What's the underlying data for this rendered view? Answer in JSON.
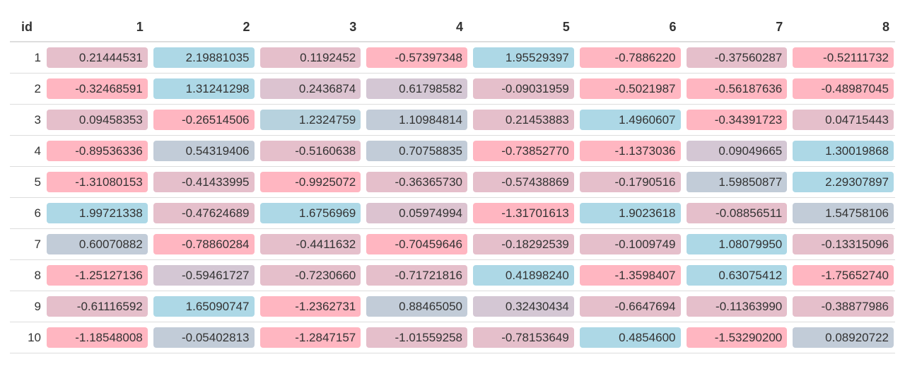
{
  "table": {
    "headers": [
      "id",
      "1",
      "2",
      "3",
      "4",
      "5",
      "6",
      "7",
      "8"
    ],
    "colors": {
      "pink": "#ffb6c1",
      "mauve": "#e5bfcb",
      "lavender": "#d4c7d4",
      "slate": "#c2ccd8",
      "blue": "#add8e6"
    },
    "rows": [
      {
        "id": "1",
        "cells": [
          {
            "v": "0.21444531",
            "c": "#e5bfcb"
          },
          {
            "v": "2.19881035",
            "c": "#add8e6"
          },
          {
            "v": "0.1192452",
            "c": "#e5bfcb"
          },
          {
            "v": "-0.57397348",
            "c": "#ffb6c1"
          },
          {
            "v": "1.95529397",
            "c": "#add8e6"
          },
          {
            "v": "-0.7886220",
            "c": "#ffb6c1"
          },
          {
            "v": "-0.37560287",
            "c": "#e5bfcb"
          },
          {
            "v": "-0.52111732",
            "c": "#ffb6c1"
          }
        ]
      },
      {
        "id": "2",
        "cells": [
          {
            "v": "-0.32468591",
            "c": "#ffb6c1"
          },
          {
            "v": "1.31241298",
            "c": "#add8e6"
          },
          {
            "v": "0.2436874",
            "c": "#dcc3d0"
          },
          {
            "v": "0.61798582",
            "c": "#d4c7d4"
          },
          {
            "v": "-0.09031959",
            "c": "#e5bfcb"
          },
          {
            "v": "-0.5021987",
            "c": "#ffb6c1"
          },
          {
            "v": "-0.56187636",
            "c": "#ffb6c1"
          },
          {
            "v": "-0.48987045",
            "c": "#ffb6c1"
          }
        ]
      },
      {
        "id": "3",
        "cells": [
          {
            "v": "0.09458353",
            "c": "#e5bfcb"
          },
          {
            "v": "-0.26514506",
            "c": "#ffb6c1"
          },
          {
            "v": "1.2324759",
            "c": "#b7d2de"
          },
          {
            "v": "1.10984814",
            "c": "#c2ccd8"
          },
          {
            "v": "0.21453883",
            "c": "#e5bfcb"
          },
          {
            "v": "1.4960607",
            "c": "#add8e6"
          },
          {
            "v": "-0.34391723",
            "c": "#ffb6c1"
          },
          {
            "v": "0.04715443",
            "c": "#e5bfcb"
          }
        ]
      },
      {
        "id": "4",
        "cells": [
          {
            "v": "-0.89536336",
            "c": "#ffb6c1"
          },
          {
            "v": "0.54319406",
            "c": "#c2ccd8"
          },
          {
            "v": "-0.5160638",
            "c": "#e5bfcb"
          },
          {
            "v": "0.70758835",
            "c": "#c2ccd8"
          },
          {
            "v": "-0.73852770",
            "c": "#ffb6c1"
          },
          {
            "v": "-1.1373036",
            "c": "#ffb6c1"
          },
          {
            "v": "0.09049665",
            "c": "#d4c7d4"
          },
          {
            "v": "1.30019868",
            "c": "#add8e6"
          }
        ]
      },
      {
        "id": "5",
        "cells": [
          {
            "v": "-1.31080153",
            "c": "#ffb6c1"
          },
          {
            "v": "-0.41433995",
            "c": "#e5bfcb"
          },
          {
            "v": "-0.9925072",
            "c": "#ffb6c1"
          },
          {
            "v": "-0.36365730",
            "c": "#e5bfcb"
          },
          {
            "v": "-0.57438869",
            "c": "#e5bfcb"
          },
          {
            "v": "-0.1790516",
            "c": "#e5bfcb"
          },
          {
            "v": "1.59850877",
            "c": "#c2ccd8"
          },
          {
            "v": "2.29307897",
            "c": "#add8e6"
          }
        ]
      },
      {
        "id": "6",
        "cells": [
          {
            "v": "1.99721338",
            "c": "#add8e6"
          },
          {
            "v": "-0.47624689",
            "c": "#e5bfcb"
          },
          {
            "v": "1.6756969",
            "c": "#add8e6"
          },
          {
            "v": "0.05974994",
            "c": "#dcc3d0"
          },
          {
            "v": "-1.31701613",
            "c": "#ffb6c1"
          },
          {
            "v": "1.9023618",
            "c": "#add8e6"
          },
          {
            "v": "-0.08856511",
            "c": "#e5bfcb"
          },
          {
            "v": "1.54758106",
            "c": "#c2ccd8"
          }
        ]
      },
      {
        "id": "7",
        "cells": [
          {
            "v": "0.60070882",
            "c": "#c2ccd8"
          },
          {
            "v": "-0.78860284",
            "c": "#ffb6c1"
          },
          {
            "v": "-0.4411632",
            "c": "#e5bfcb"
          },
          {
            "v": "-0.70459646",
            "c": "#ffb6c1"
          },
          {
            "v": "-0.18292539",
            "c": "#e5bfcb"
          },
          {
            "v": "-0.1009749",
            "c": "#e5bfcb"
          },
          {
            "v": "1.08079950",
            "c": "#add8e6"
          },
          {
            "v": "-0.13315096",
            "c": "#e5bfcb"
          }
        ]
      },
      {
        "id": "8",
        "cells": [
          {
            "v": "-1.25127136",
            "c": "#ffb6c1"
          },
          {
            "v": "-0.59461727",
            "c": "#d4c7d4"
          },
          {
            "v": "-0.7230660",
            "c": "#e5bfcb"
          },
          {
            "v": "-0.71721816",
            "c": "#e5bfcb"
          },
          {
            "v": "0.41898240",
            "c": "#add8e6"
          },
          {
            "v": "-1.3598407",
            "c": "#ffb6c1"
          },
          {
            "v": "0.63075412",
            "c": "#add8e6"
          },
          {
            "v": "-1.75652740",
            "c": "#ffb6c1"
          }
        ]
      },
      {
        "id": "9",
        "cells": [
          {
            "v": "-0.61116592",
            "c": "#e5bfcb"
          },
          {
            "v": "1.65090747",
            "c": "#add8e6"
          },
          {
            "v": "-1.2362731",
            "c": "#ffb6c1"
          },
          {
            "v": "0.88465050",
            "c": "#c2ccd8"
          },
          {
            "v": "0.32430434",
            "c": "#d4c7d4"
          },
          {
            "v": "-0.6647694",
            "c": "#e5bfcb"
          },
          {
            "v": "-0.11363990",
            "c": "#e5bfcb"
          },
          {
            "v": "-0.38877986",
            "c": "#e5bfcb"
          }
        ]
      },
      {
        "id": "10",
        "cells": [
          {
            "v": "-1.18548008",
            "c": "#ffb6c1"
          },
          {
            "v": "-0.05402813",
            "c": "#c2ccd8"
          },
          {
            "v": "-1.2847157",
            "c": "#ffb6c1"
          },
          {
            "v": "-1.01559258",
            "c": "#e5bfcb"
          },
          {
            "v": "-0.78153649",
            "c": "#e5bfcb"
          },
          {
            "v": "0.4854600",
            "c": "#add8e6"
          },
          {
            "v": "-1.53290200",
            "c": "#ffb6c1"
          },
          {
            "v": "0.08920722",
            "c": "#c2ccd8"
          }
        ]
      }
    ]
  }
}
